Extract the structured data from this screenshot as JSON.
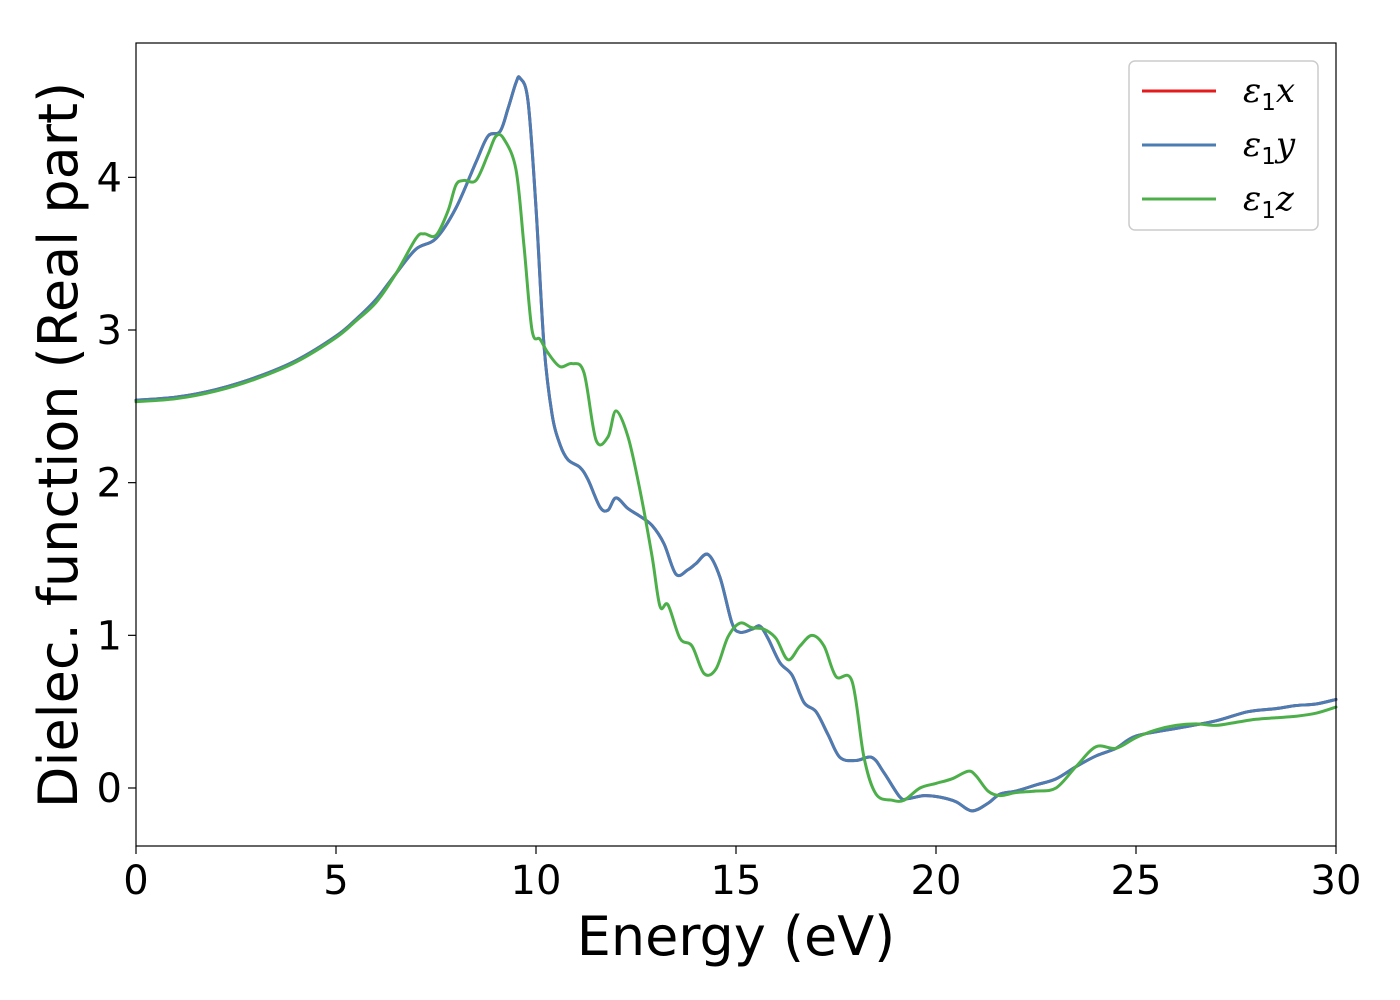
{
  "chart_data": {
    "type": "line",
    "xlabel": "Energy (eV)",
    "ylabel": "Dielec. function (Real part)",
    "xlim": [
      0,
      30
    ],
    "ylim": [
      -0.38,
      4.88
    ],
    "xticks": [
      0,
      5,
      10,
      15,
      20,
      25,
      30
    ],
    "yticks": [
      0,
      1,
      2,
      3,
      4
    ],
    "xtick_labels": [
      "0",
      "5",
      "10",
      "15",
      "20",
      "25",
      "30"
    ],
    "ytick_labels": [
      "0",
      "1",
      "2",
      "3",
      "4"
    ],
    "grid": false,
    "legend_position": "top-right",
    "series": [
      {
        "name": "ε1x",
        "symbol": "ε",
        "sub": "1",
        "axis": "x",
        "color": "#e41a1c",
        "x": [
          0,
          1,
          2,
          3,
          4,
          5,
          5.5,
          6,
          6.5,
          7,
          7.5,
          8,
          8.5,
          8.8,
          9.1,
          9.3,
          9.5,
          9.6,
          9.8,
          10,
          10.2,
          10.4,
          10.6,
          10.8,
          11.1,
          11.3,
          11.6,
          11.8,
          12,
          12.3,
          12.6,
          12.9,
          13.2,
          13.5,
          13.8,
          14,
          14.3,
          14.6,
          14.9,
          15.1,
          15.4,
          15.6,
          15.8,
          16.1,
          16.4,
          16.7,
          17,
          17.3,
          17.6,
          18,
          18.4,
          18.7,
          19.1,
          19.3,
          19.7,
          20.1,
          20.5,
          20.9,
          21.3,
          21.6,
          22,
          22.5,
          23,
          23.5,
          24,
          24.5,
          25,
          26,
          27,
          27.8,
          28.5,
          29,
          29.5,
          30
        ],
        "y": [
          2.54,
          2.56,
          2.61,
          2.69,
          2.8,
          2.96,
          3.07,
          3.2,
          3.37,
          3.53,
          3.6,
          3.8,
          4.1,
          4.27,
          4.3,
          4.45,
          4.62,
          4.65,
          4.5,
          3.8,
          2.9,
          2.45,
          2.25,
          2.15,
          2.1,
          2.02,
          1.84,
          1.82,
          1.9,
          1.83,
          1.78,
          1.72,
          1.6,
          1.4,
          1.43,
          1.47,
          1.53,
          1.38,
          1.08,
          1.02,
          1.04,
          1.06,
          0.98,
          0.82,
          0.74,
          0.56,
          0.5,
          0.35,
          0.2,
          0.18,
          0.2,
          0.1,
          -0.06,
          -0.07,
          -0.05,
          -0.06,
          -0.09,
          -0.15,
          -0.1,
          -0.04,
          -0.02,
          0.02,
          0.06,
          0.14,
          0.21,
          0.26,
          0.34,
          0.39,
          0.44,
          0.5,
          0.52,
          0.54,
          0.55,
          0.58
        ]
      },
      {
        "name": "ε1y",
        "symbol": "ε",
        "sub": "1",
        "axis": "y",
        "color": "#4a7db4",
        "x": [
          0,
          1,
          2,
          3,
          4,
          5,
          5.5,
          6,
          6.5,
          7,
          7.5,
          8,
          8.5,
          8.8,
          9.1,
          9.3,
          9.5,
          9.6,
          9.8,
          10,
          10.2,
          10.4,
          10.6,
          10.8,
          11.1,
          11.3,
          11.6,
          11.8,
          12,
          12.3,
          12.6,
          12.9,
          13.2,
          13.5,
          13.8,
          14,
          14.3,
          14.6,
          14.9,
          15.1,
          15.4,
          15.6,
          15.8,
          16.1,
          16.4,
          16.7,
          17,
          17.3,
          17.6,
          18,
          18.4,
          18.7,
          19.1,
          19.3,
          19.7,
          20.1,
          20.5,
          20.9,
          21.3,
          21.6,
          22,
          22.5,
          23,
          23.5,
          24,
          24.5,
          25,
          26,
          27,
          27.8,
          28.5,
          29,
          29.5,
          30
        ],
        "y": [
          2.54,
          2.56,
          2.61,
          2.69,
          2.8,
          2.96,
          3.07,
          3.2,
          3.37,
          3.53,
          3.6,
          3.8,
          4.1,
          4.27,
          4.3,
          4.45,
          4.62,
          4.65,
          4.5,
          3.8,
          2.9,
          2.45,
          2.25,
          2.15,
          2.1,
          2.02,
          1.84,
          1.82,
          1.9,
          1.83,
          1.78,
          1.72,
          1.6,
          1.4,
          1.43,
          1.47,
          1.53,
          1.38,
          1.08,
          1.02,
          1.04,
          1.06,
          0.98,
          0.82,
          0.74,
          0.56,
          0.5,
          0.35,
          0.2,
          0.18,
          0.2,
          0.1,
          -0.06,
          -0.07,
          -0.05,
          -0.06,
          -0.09,
          -0.15,
          -0.1,
          -0.04,
          -0.02,
          0.02,
          0.06,
          0.14,
          0.21,
          0.26,
          0.34,
          0.39,
          0.44,
          0.5,
          0.52,
          0.54,
          0.55,
          0.58
        ]
      },
      {
        "name": "ε1z",
        "symbol": "ε",
        "sub": "1",
        "axis": "z",
        "color": "#4daf4a",
        "x": [
          0,
          1,
          2,
          3,
          4,
          5,
          5.5,
          6,
          6.5,
          7,
          7.2,
          7.5,
          7.8,
          8,
          8.2,
          8.5,
          8.8,
          9,
          9.2,
          9.5,
          9.7,
          9.9,
          10.1,
          10.3,
          10.6,
          10.9,
          11.2,
          11.5,
          11.8,
          12,
          12.3,
          12.6,
          12.9,
          13.1,
          13.3,
          13.6,
          13.9,
          14.2,
          14.5,
          14.8,
          15.1,
          15.4,
          15.7,
          16,
          16.3,
          16.6,
          16.9,
          17.2,
          17.5,
          17.9,
          18.2,
          18.5,
          18.9,
          19.2,
          19.6,
          20,
          20.4,
          20.8,
          21,
          21.3,
          21.6,
          22,
          22.5,
          23,
          23.5,
          24,
          24.5,
          25,
          25.5,
          26,
          26.5,
          27,
          27.5,
          28,
          28.5,
          29,
          29.5,
          30
        ],
        "y": [
          2.53,
          2.55,
          2.6,
          2.68,
          2.79,
          2.95,
          3.06,
          3.18,
          3.37,
          3.6,
          3.63,
          3.62,
          3.78,
          3.95,
          3.98,
          3.98,
          4.15,
          4.27,
          4.25,
          4.05,
          3.55,
          3.0,
          2.94,
          2.85,
          2.76,
          2.78,
          2.72,
          2.28,
          2.3,
          2.47,
          2.3,
          1.95,
          1.52,
          1.19,
          1.2,
          0.98,
          0.93,
          0.75,
          0.78,
          0.99,
          1.08,
          1.05,
          1.04,
          0.98,
          0.84,
          0.93,
          1.0,
          0.93,
          0.73,
          0.7,
          0.2,
          -0.04,
          -0.08,
          -0.08,
          0.0,
          0.03,
          0.06,
          0.11,
          0.08,
          -0.02,
          -0.05,
          -0.03,
          -0.02,
          0.0,
          0.14,
          0.27,
          0.26,
          0.33,
          0.38,
          0.41,
          0.42,
          0.41,
          0.43,
          0.45,
          0.46,
          0.47,
          0.49,
          0.53
        ]
      }
    ]
  }
}
